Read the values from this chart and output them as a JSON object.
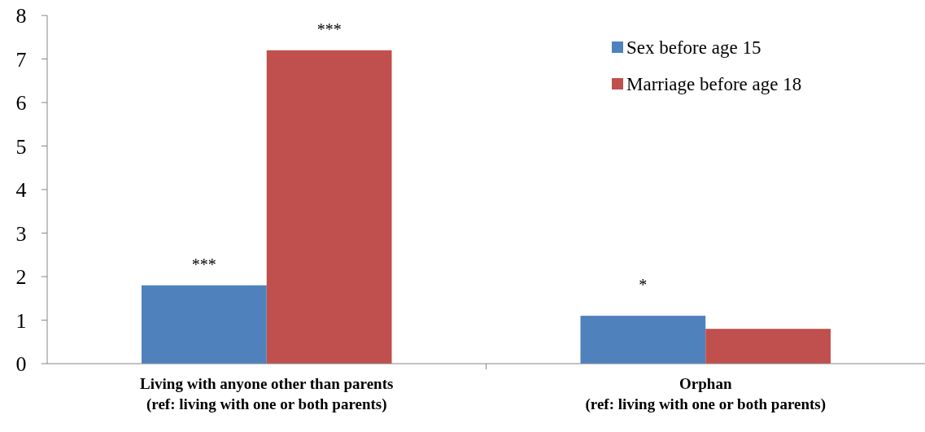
{
  "chart_data": {
    "type": "bar",
    "categories": [
      "Living with anyone other than parents\n(ref: living with one or both parents)",
      "Orphan\n(ref: living with one or both parents)"
    ],
    "series": [
      {
        "name": "Sex before age 15",
        "color": "#4f81bd",
        "values": [
          1.8,
          1.1
        ]
      },
      {
        "name": "Marriage before age 18",
        "color": "#c0504d",
        "values": [
          7.2,
          0.8
        ]
      }
    ],
    "ylim": [
      0,
      8
    ],
    "yticks": [
      0,
      1,
      2,
      3,
      4,
      5,
      6,
      7,
      8
    ],
    "grid": false,
    "legend": "top right",
    "annotations": [
      "***",
      "***",
      "*"
    ]
  }
}
